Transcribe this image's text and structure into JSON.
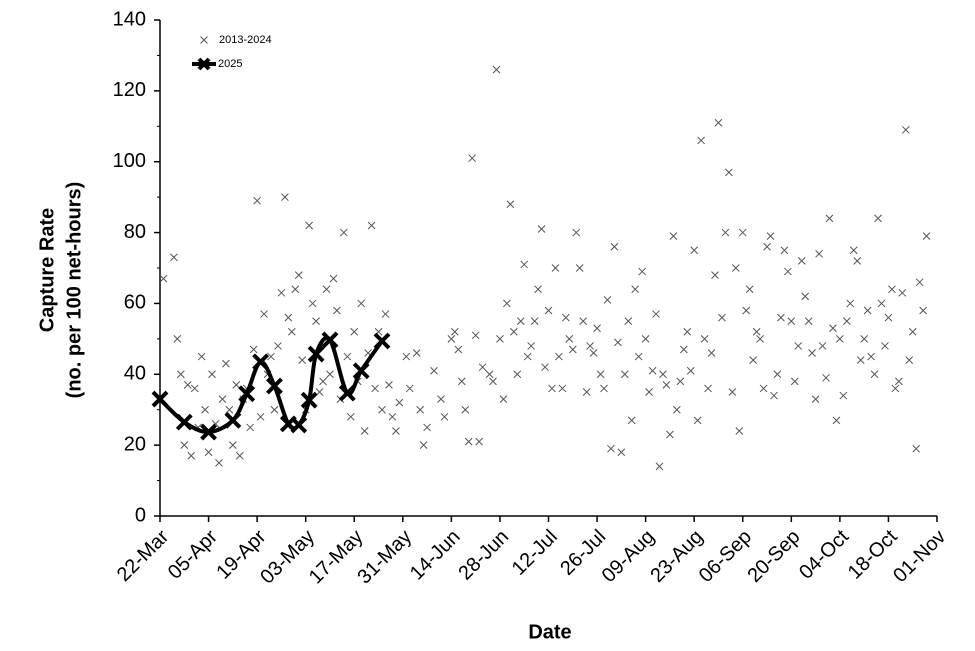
{
  "chart_data": {
    "type": "scatter",
    "xlabel": "Date",
    "ylabel": [
      "Capture Rate",
      "(no. per 100 net-hours)"
    ],
    "xlim": [
      81,
      305
    ],
    "xticks": [
      {
        "value": 81,
        "label": "22-Mar"
      },
      {
        "value": 95,
        "label": "05-Apr"
      },
      {
        "value": 109,
        "label": "19-Apr"
      },
      {
        "value": 123,
        "label": "03-May"
      },
      {
        "value": 137,
        "label": "17-May"
      },
      {
        "value": 151,
        "label": "31-May"
      },
      {
        "value": 165,
        "label": "14-Jun"
      },
      {
        "value": 179,
        "label": "28-Jun"
      },
      {
        "value": 193,
        "label": "12-Jul"
      },
      {
        "value": 207,
        "label": "26-Jul"
      },
      {
        "value": 221,
        "label": "09-Aug"
      },
      {
        "value": 235,
        "label": "23-Aug"
      },
      {
        "value": 249,
        "label": "06-Sep"
      },
      {
        "value": 263,
        "label": "20-Sep"
      },
      {
        "value": 277,
        "label": "04-Oct"
      },
      {
        "value": 291,
        "label": "18-Oct"
      },
      {
        "value": 305,
        "label": "01-Nov"
      }
    ],
    "ylim": [
      0,
      140
    ],
    "yticks": [
      0,
      20,
      40,
      60,
      80,
      100,
      120,
      140
    ],
    "legend": "top-left",
    "series": [
      {
        "name": "2013-2024",
        "color": "#555555",
        "marker": "x",
        "x": [
          82,
          85,
          86,
          87,
          88,
          89,
          90,
          91,
          92,
          93,
          94,
          95,
          96,
          97,
          98,
          99,
          100,
          101,
          102,
          103,
          104,
          105,
          106,
          107,
          108,
          109,
          110,
          111,
          112,
          113,
          114,
          115,
          116,
          117,
          118,
          119,
          120,
          121,
          122,
          123,
          124,
          125,
          126,
          127,
          128,
          129,
          130,
          131,
          132,
          133,
          134,
          135,
          136,
          137,
          138,
          139,
          140,
          141,
          142,
          143,
          144,
          145,
          146,
          147,
          148,
          149,
          150,
          152,
          153,
          155,
          156,
          157,
          158,
          160,
          162,
          163,
          165,
          166,
          167,
          168,
          169,
          170,
          171,
          172,
          173,
          174,
          176,
          177,
          178,
          179,
          180,
          181,
          182,
          183,
          184,
          185,
          186,
          187,
          188,
          189,
          190,
          191,
          192,
          193,
          194,
          195,
          196,
          197,
          198,
          199,
          200,
          201,
          202,
          203,
          204,
          205,
          206,
          207,
          208,
          209,
          210,
          211,
          212,
          213,
          214,
          215,
          216,
          217,
          218,
          219,
          220,
          221,
          222,
          223,
          224,
          225,
          226,
          227,
          228,
          229,
          230,
          231,
          232,
          233,
          234,
          235,
          236,
          237,
          238,
          239,
          240,
          241,
          242,
          243,
          244,
          245,
          246,
          247,
          248,
          249,
          250,
          251,
          252,
          253,
          254,
          255,
          256,
          257,
          258,
          259,
          260,
          261,
          262,
          263,
          264,
          265,
          266,
          267,
          268,
          269,
          270,
          271,
          272,
          273,
          274,
          275,
          276,
          277,
          278,
          279,
          280,
          281,
          282,
          283,
          284,
          285,
          286,
          287,
          288,
          289,
          290,
          291,
          292,
          293,
          294,
          295,
          296,
          297,
          298,
          299,
          300,
          301,
          302
        ],
        "values": [
          67,
          73,
          50,
          40,
          20,
          37,
          17,
          36,
          25,
          45,
          30,
          18,
          40,
          26,
          15,
          33,
          43,
          30,
          20,
          37,
          17,
          33,
          36,
          25,
          47,
          89,
          28,
          57,
          40,
          45,
          30,
          48,
          63,
          90,
          56,
          52,
          64,
          68,
          44,
          30,
          82,
          60,
          55,
          35,
          38,
          64,
          40,
          67,
          58,
          33,
          80,
          45,
          28,
          52,
          38,
          60,
          24,
          46,
          82,
          36,
          52,
          30,
          57,
          37,
          28,
          24,
          32,
          45,
          36,
          46,
          30,
          20,
          25,
          41,
          33,
          28,
          50,
          52,
          47,
          38,
          30,
          21,
          101,
          51,
          21,
          42,
          40,
          38,
          126,
          50,
          33,
          60,
          88,
          52,
          40,
          55,
          71,
          45,
          48,
          55,
          64,
          81,
          42,
          58,
          36,
          70,
          45,
          36,
          56,
          50,
          47,
          80,
          70,
          55,
          35,
          48,
          46,
          53,
          40,
          36,
          61,
          19,
          76,
          49,
          18,
          40,
          55,
          27,
          64,
          45,
          69,
          50,
          35,
          41,
          57,
          14,
          40,
          37,
          23,
          79,
          30,
          38,
          47,
          52,
          41,
          75,
          27,
          106,
          50,
          36,
          46,
          68,
          111,
          56,
          80,
          97,
          35,
          70,
          24,
          80,
          58,
          64,
          44,
          52,
          50,
          36,
          76,
          79,
          34,
          40,
          56,
          75,
          69,
          55,
          38,
          48,
          72,
          62,
          55,
          46,
          33,
          74,
          48,
          39,
          84,
          53,
          27,
          50,
          34,
          55,
          60,
          75,
          72,
          44,
          50,
          58,
          45,
          40,
          84,
          60,
          48,
          56,
          64,
          36,
          38,
          63,
          109,
          44,
          52,
          19,
          66,
          58,
          79
        ]
      },
      {
        "name": "2025",
        "color": "#000000",
        "marker": "x",
        "line": true,
        "x": [
          81,
          88,
          95,
          102,
          106,
          110,
          114,
          118,
          121,
          124,
          126,
          130,
          135,
          139,
          145
        ],
        "values": [
          33,
          26.5,
          23.7,
          27,
          34.5,
          43.5,
          36.7,
          26,
          25.7,
          32.7,
          45.7,
          49.7,
          34.7,
          41,
          49.4
        ]
      }
    ]
  }
}
